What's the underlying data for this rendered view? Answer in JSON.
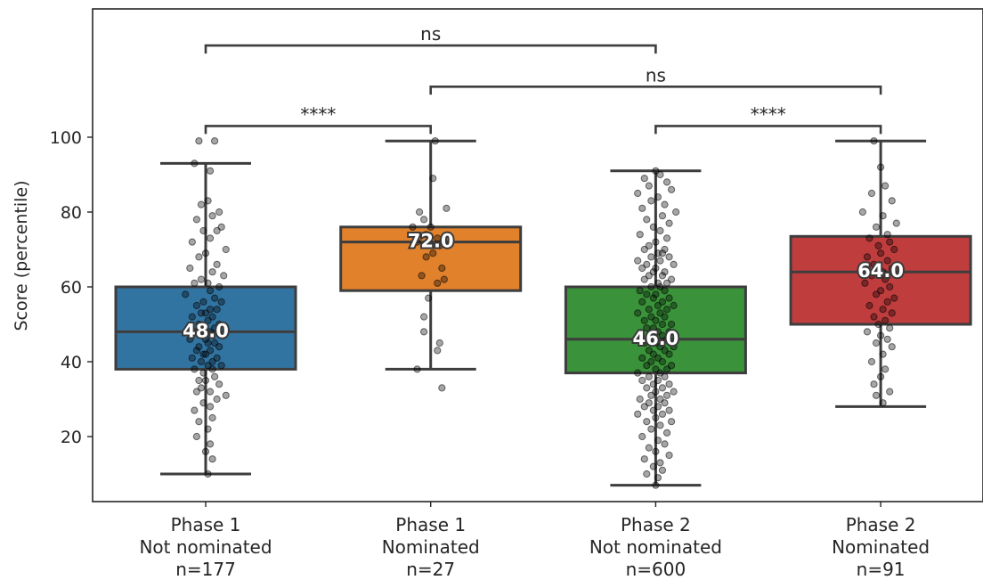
{
  "chart_data": {
    "type": "box",
    "ylabel": "Score (percentile)",
    "yticks": [
      20,
      40,
      60,
      80,
      100
    ],
    "ylim": [
      2,
      133
    ],
    "grid": false,
    "legend": "none",
    "categories": [
      {
        "lines": [
          "Phase 1",
          "Not nominated",
          "n=177"
        ],
        "color": "#3274a1",
        "min": 10,
        "q1": 38,
        "median": 48,
        "q3": 60,
        "max": 93,
        "median_label": "48.0",
        "n": 177
      },
      {
        "lines": [
          "Phase 1",
          "Nominated",
          "n=27"
        ],
        "color": "#e1812c",
        "min": 38,
        "q1": 59,
        "median": 72,
        "q3": 76,
        "max": 99,
        "median_label": "72.0",
        "n": 27
      },
      {
        "lines": [
          "Phase 2",
          "Not nominated",
          "n=600"
        ],
        "color": "#3a923a",
        "min": 7,
        "q1": 37,
        "median": 46,
        "q3": 60,
        "max": 91,
        "median_label": "46.0",
        "n": 600
      },
      {
        "lines": [
          "Phase 2",
          "Nominated",
          "n=91"
        ],
        "color": "#c03d3e",
        "min": 28,
        "q1": 50,
        "median": 64,
        "q3": 73.5,
        "max": 99,
        "median_label": "64.0",
        "n": 91
      }
    ],
    "significance": [
      {
        "from": 0,
        "to": 1,
        "label": "****",
        "y": 103
      },
      {
        "from": 2,
        "to": 3,
        "label": "****",
        "y": 103
      },
      {
        "from": 1,
        "to": 3,
        "label": "ns",
        "y": 113.5
      },
      {
        "from": 0,
        "to": 2,
        "label": "ns",
        "y": 124.5
      }
    ],
    "points": [
      [
        [
          -0.03,
          99
        ],
        [
          0.04,
          99
        ],
        [
          0.02,
          91
        ],
        [
          -0.05,
          93
        ],
        [
          0.01,
          83
        ],
        [
          -0.02,
          82
        ],
        [
          0.06,
          80
        ],
        [
          0.03,
          79
        ],
        [
          -0.04,
          78
        ],
        [
          0.07,
          76
        ],
        [
          -0.01,
          75
        ],
        [
          0.05,
          75
        ],
        [
          0.02,
          73
        ],
        [
          -0.06,
          72
        ],
        [
          0.09,
          70
        ],
        [
          0.0,
          69
        ],
        [
          -0.03,
          68
        ],
        [
          0.05,
          66
        ],
        [
          -0.07,
          65
        ],
        [
          0.03,
          64
        ],
        [
          0.08,
          63
        ],
        [
          -0.02,
          62
        ],
        [
          0.01,
          61
        ],
        [
          -0.05,
          61
        ],
        [
          0.06,
          60
        ],
        [
          0.02,
          59
        ],
        [
          -0.09,
          58
        ],
        [
          0.04,
          57
        ],
        [
          -0.01,
          56
        ],
        [
          0.07,
          56
        ],
        [
          -0.04,
          55
        ],
        [
          0.02,
          54
        ],
        [
          0.05,
          54
        ],
        [
          -0.02,
          53
        ],
        [
          0.0,
          53
        ],
        [
          0.03,
          52
        ],
        [
          -0.06,
          52
        ],
        [
          0.01,
          51
        ],
        [
          -0.03,
          50
        ],
        [
          0.06,
          50
        ],
        [
          0.04,
          49
        ],
        [
          -0.01,
          49
        ],
        [
          -0.05,
          48
        ],
        [
          0.02,
          48
        ],
        [
          0.08,
          47
        ],
        [
          -0.02,
          47
        ],
        [
          0.0,
          46
        ],
        [
          -0.07,
          46
        ],
        [
          0.04,
          45
        ],
        [
          0.01,
          45
        ],
        [
          -0.03,
          44
        ],
        [
          0.06,
          44
        ],
        [
          -0.04,
          43
        ],
        [
          0.02,
          43
        ],
        [
          0.0,
          42
        ],
        [
          -0.01,
          42
        ],
        [
          0.05,
          41
        ],
        [
          -0.06,
          41
        ],
        [
          0.03,
          40
        ],
        [
          -0.02,
          40
        ],
        [
          0.07,
          39
        ],
        [
          0.01,
          39
        ],
        [
          -0.05,
          38
        ],
        [
          0.03,
          38
        ],
        [
          -0.01,
          37
        ],
        [
          0.04,
          36
        ],
        [
          -0.03,
          35
        ],
        [
          0.0,
          35
        ],
        [
          0.06,
          34
        ],
        [
          -0.02,
          33
        ],
        [
          0.02,
          32
        ],
        [
          -0.04,
          32
        ],
        [
          0.09,
          31
        ],
        [
          0.05,
          30
        ],
        [
          -0.01,
          29
        ],
        [
          0.02,
          28
        ],
        [
          -0.05,
          27
        ],
        [
          0.03,
          25
        ],
        [
          -0.03,
          24
        ],
        [
          0.01,
          22
        ],
        [
          -0.04,
          20
        ],
        [
          0.02,
          18
        ],
        [
          0.0,
          16
        ],
        [
          0.03,
          14
        ],
        [
          0.01,
          10
        ]
      ],
      [
        [
          0.02,
          99
        ],
        [
          0.01,
          89
        ],
        [
          0.07,
          81
        ],
        [
          -0.05,
          80
        ],
        [
          -0.03,
          78
        ],
        [
          -0.08,
          76
        ],
        [
          0.0,
          76
        ],
        [
          -0.02,
          74
        ],
        [
          0.03,
          73
        ],
        [
          -0.06,
          72
        ],
        [
          0.04,
          71
        ],
        [
          0.01,
          69
        ],
        [
          -0.02,
          68
        ],
        [
          0.05,
          65
        ],
        [
          -0.04,
          63
        ],
        [
          0.06,
          62
        ],
        [
          0.03,
          61
        ],
        [
          -0.01,
          57
        ],
        [
          -0.03,
          52
        ],
        [
          0.04,
          45
        ],
        [
          0.03,
          43
        ],
        [
          -0.03,
          48
        ],
        [
          -0.06,
          38
        ],
        [
          0.05,
          33
        ]
      ],
      [
        [
          0.0,
          91
        ],
        [
          0.02,
          90
        ],
        [
          -0.05,
          89
        ],
        [
          0.05,
          88
        ],
        [
          -0.03,
          87
        ],
        [
          0.07,
          86
        ],
        [
          -0.08,
          85
        ],
        [
          0.01,
          84
        ],
        [
          -0.02,
          83
        ],
        [
          0.04,
          82
        ],
        [
          -0.06,
          81
        ],
        [
          0.09,
          80
        ],
        [
          0.03,
          79
        ],
        [
          -0.04,
          78
        ],
        [
          0.06,
          77
        ],
        [
          -0.01,
          76
        ],
        [
          0.02,
          75
        ],
        [
          -0.07,
          74
        ],
        [
          0.05,
          73
        ],
        [
          0.0,
          72
        ],
        [
          -0.03,
          71
        ],
        [
          0.04,
          70
        ],
        [
          -0.05,
          70
        ],
        [
          0.01,
          69
        ],
        [
          0.03,
          69
        ],
        [
          -0.02,
          68
        ],
        [
          0.06,
          68
        ],
        [
          -0.08,
          67
        ],
        [
          0.02,
          67
        ],
        [
          -0.04,
          66
        ],
        [
          0.08,
          66
        ],
        [
          0.0,
          65
        ],
        [
          -0.06,
          65
        ],
        [
          0.04,
          64
        ],
        [
          -0.01,
          64
        ],
        [
          0.03,
          63
        ],
        [
          -0.03,
          63
        ],
        [
          0.07,
          62
        ],
        [
          -0.05,
          62
        ],
        [
          0.01,
          61
        ],
        [
          0.05,
          61
        ],
        [
          -0.02,
          60
        ],
        [
          0.02,
          60
        ],
        [
          -0.07,
          59
        ],
        [
          0.04,
          59
        ],
        [
          0.0,
          58
        ],
        [
          -0.04,
          58
        ],
        [
          0.06,
          57
        ],
        [
          -0.01,
          57
        ],
        [
          0.03,
          56
        ],
        [
          -0.06,
          56
        ],
        [
          0.08,
          55
        ],
        [
          0.01,
          55
        ],
        [
          -0.03,
          54
        ],
        [
          0.05,
          54
        ],
        [
          -0.08,
          53
        ],
        [
          0.02,
          53
        ],
        [
          -0.02,
          52
        ],
        [
          0.04,
          52
        ],
        [
          0.0,
          51
        ],
        [
          -0.05,
          51
        ],
        [
          0.07,
          50
        ],
        [
          0.03,
          50
        ],
        [
          -0.01,
          49
        ],
        [
          -0.04,
          49
        ],
        [
          0.06,
          48
        ],
        [
          0.01,
          48
        ],
        [
          -0.07,
          47
        ],
        [
          0.03,
          47
        ],
        [
          -0.02,
          46
        ],
        [
          0.05,
          46
        ],
        [
          0.0,
          45
        ],
        [
          -0.05,
          45
        ],
        [
          0.08,
          44
        ],
        [
          0.02,
          44
        ],
        [
          -0.03,
          43
        ],
        [
          0.04,
          43
        ],
        [
          -0.01,
          42
        ],
        [
          0.06,
          42
        ],
        [
          -0.06,
          41
        ],
        [
          0.01,
          41
        ],
        [
          0.03,
          40
        ],
        [
          -0.02,
          40
        ],
        [
          0.07,
          39
        ],
        [
          -0.04,
          39
        ],
        [
          0.0,
          38
        ],
        [
          0.05,
          38
        ],
        [
          -0.08,
          37
        ],
        [
          0.02,
          37
        ],
        [
          -0.03,
          36
        ],
        [
          0.04,
          36
        ],
        [
          0.01,
          35
        ],
        [
          -0.06,
          35
        ],
        [
          0.06,
          34
        ],
        [
          -0.01,
          34
        ],
        [
          0.03,
          33
        ],
        [
          -0.04,
          33
        ],
        [
          0.08,
          32
        ],
        [
          0.0,
          32
        ],
        [
          -0.02,
          31
        ],
        [
          0.05,
          31
        ],
        [
          -0.07,
          30
        ],
        [
          0.02,
          30
        ],
        [
          0.04,
          29
        ],
        [
          -0.03,
          29
        ],
        [
          0.01,
          28
        ],
        [
          -0.05,
          28
        ],
        [
          0.06,
          27
        ],
        [
          -0.01,
          27
        ],
        [
          0.03,
          26
        ],
        [
          -0.08,
          26
        ],
        [
          0.0,
          25
        ],
        [
          0.07,
          24
        ],
        [
          -0.04,
          24
        ],
        [
          0.02,
          23
        ],
        [
          -0.02,
          22
        ],
        [
          0.05,
          21
        ],
        [
          -0.06,
          20
        ],
        [
          0.01,
          19
        ],
        [
          0.04,
          18
        ],
        [
          -0.03,
          17
        ],
        [
          0.0,
          16
        ],
        [
          0.06,
          15
        ],
        [
          -0.05,
          14
        ],
        [
          0.02,
          13
        ],
        [
          -0.01,
          12
        ],
        [
          0.03,
          11
        ],
        [
          -0.04,
          10
        ],
        [
          0.01,
          9
        ],
        [
          0.0,
          7
        ]
      ],
      [
        [
          -0.03,
          99
        ],
        [
          0.0,
          92
        ],
        [
          0.02,
          87
        ],
        [
          -0.04,
          85
        ],
        [
          0.05,
          83
        ],
        [
          -0.08,
          80
        ],
        [
          0.01,
          79
        ],
        [
          0.07,
          77
        ],
        [
          -0.02,
          76
        ],
        [
          0.03,
          74
        ],
        [
          -0.05,
          73
        ],
        [
          0.04,
          72
        ],
        [
          -0.01,
          71
        ],
        [
          0.06,
          70
        ],
        [
          0.0,
          69
        ],
        [
          -0.06,
          68
        ],
        [
          0.03,
          67
        ],
        [
          -0.03,
          66
        ],
        [
          0.05,
          65
        ],
        [
          0.01,
          64
        ],
        [
          -0.04,
          63
        ],
        [
          0.02,
          62
        ],
        [
          -0.07,
          61
        ],
        [
          0.04,
          60
        ],
        [
          0.0,
          59
        ],
        [
          -0.02,
          58
        ],
        [
          0.06,
          57
        ],
        [
          0.03,
          56
        ],
        [
          -0.05,
          55
        ],
        [
          0.01,
          54
        ],
        [
          0.05,
          53
        ],
        [
          -0.03,
          52
        ],
        [
          0.02,
          51
        ],
        [
          -0.01,
          50
        ],
        [
          0.04,
          49
        ],
        [
          -0.06,
          48
        ],
        [
          0.0,
          47
        ],
        [
          0.03,
          46
        ],
        [
          -0.02,
          45
        ],
        [
          0.05,
          44
        ],
        [
          0.01,
          42
        ],
        [
          -0.04,
          40
        ],
        [
          0.02,
          38
        ],
        [
          0.0,
          36
        ],
        [
          -0.03,
          34
        ],
        [
          0.04,
          32
        ],
        [
          -0.02,
          31
        ],
        [
          0.01,
          29
        ]
      ]
    ]
  }
}
